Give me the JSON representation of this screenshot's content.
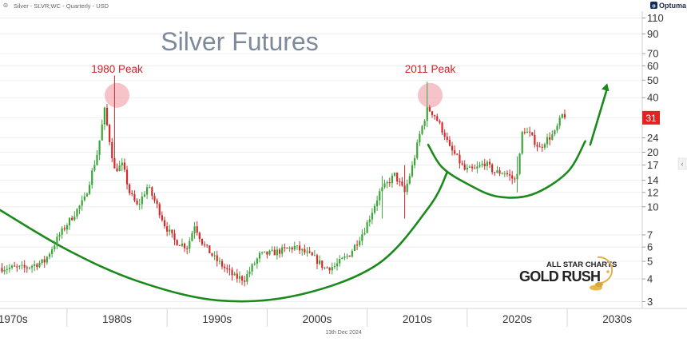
{
  "header": {
    "symbol_line": "Silver - SLVR;WC - Quarterly - USD",
    "brand": "Optuma"
  },
  "footer": {
    "date_text": "13th Dec 2024"
  },
  "watermark": {
    "line1": "ALL STAR CHARTS",
    "line2": "GOLD RUSH"
  },
  "colors": {
    "up": "#3aa63a",
    "down": "#d42a2a",
    "curve": "#1b8a1b",
    "peak_fill": "#f2a3ad",
    "peak_label": "#cc2222",
    "title": "#7d8a99",
    "price_badge": "#e32222",
    "grid": "#e6e6e6"
  },
  "chart_data": {
    "type": "candlestick",
    "title": "Silver Futures",
    "scale": "log",
    "y_ticks": [
      3,
      4,
      5,
      6,
      7,
      10,
      12,
      14,
      17,
      20,
      24,
      31,
      40,
      50,
      60,
      70,
      90,
      110
    ],
    "current_price_label": "31",
    "x_range": [
      1968.3,
      2032.5
    ],
    "x_separators": [
      1975,
      1985,
      1995,
      2005,
      2015,
      2025
    ],
    "x_labels": [
      {
        "label": "1970s",
        "x": 1969.6
      },
      {
        "label": "1980s",
        "x": 1980
      },
      {
        "label": "1990s",
        "x": 1990
      },
      {
        "label": "2000s",
        "x": 2000
      },
      {
        "label": "2010s",
        "x": 2010
      },
      {
        "label": "2020s",
        "x": 2020
      },
      {
        "label": "2030s",
        "x": 2030
      }
    ],
    "annotations": [
      {
        "label": "1980 Peak",
        "x": 1980.0,
        "y": 48
      },
      {
        "label": "2011 Peak",
        "x": 2011.3,
        "y": 48
      }
    ],
    "anchors": [
      [
        1968.5,
        4.6
      ],
      [
        1971,
        4.6
      ],
      [
        1973,
        5.0
      ],
      [
        1974.5,
        7.0
      ],
      [
        1975.5,
        8.4
      ],
      [
        1977,
        11
      ],
      [
        1978.3,
        20
      ],
      [
        1979,
        34
      ],
      [
        1980,
        16
      ],
      [
        1980.8,
        17
      ],
      [
        1981.5,
        12
      ],
      [
        1982.3,
        10
      ],
      [
        1983.3,
        13
      ],
      [
        1984.3,
        10
      ],
      [
        1985,
        8
      ],
      [
        1986,
        6.5
      ],
      [
        1987.3,
        6
      ],
      [
        1988,
        8
      ],
      [
        1988.8,
        6.3
      ],
      [
        1990,
        5.2
      ],
      [
        1991,
        4.6
      ],
      [
        1992,
        4.1
      ],
      [
        1993,
        4
      ],
      [
        1994.5,
        5.4
      ],
      [
        1996,
        5.6
      ],
      [
        1998,
        6
      ],
      [
        1999,
        5.6
      ],
      [
        2000,
        5.2
      ],
      [
        2001,
        4.6
      ],
      [
        2002,
        4.7
      ],
      [
        2003.5,
        5.5
      ],
      [
        2005,
        7.5
      ],
      [
        2006.5,
        12
      ],
      [
        2008,
        15
      ],
      [
        2009,
        12
      ],
      [
        2009.8,
        17
      ],
      [
        2010.5,
        25
      ],
      [
        2011.3,
        35
      ],
      [
        2012,
        32
      ],
      [
        2013,
        25
      ],
      [
        2013.5,
        21
      ],
      [
        2014,
        19.5
      ],
      [
        2015,
        16
      ],
      [
        2016,
        16
      ],
      [
        2017,
        17.5
      ],
      [
        2018,
        15.5
      ],
      [
        2019,
        15.5
      ],
      [
        2020,
        14
      ],
      [
        2020.4,
        17
      ],
      [
        2020.8,
        27
      ],
      [
        2021.5,
        25
      ],
      [
        2022.5,
        21
      ],
      [
        2023,
        23
      ],
      [
        2024,
        25.5
      ],
      [
        2024.75,
        32
      ]
    ],
    "curves": [
      {
        "name": "long-term base",
        "points": [
          [
            1968.3,
            9.6
          ],
          [
            1975,
            5.8
          ],
          [
            1982,
            3.9
          ],
          [
            1990,
            3.05
          ],
          [
            1998,
            3.25
          ],
          [
            2006,
            4.8
          ],
          [
            2011.2,
            10
          ],
          [
            2013,
            15.5
          ]
        ]
      },
      {
        "name": "recent base",
        "points": [
          [
            2011.1,
            22
          ],
          [
            2012.5,
            16.5
          ],
          [
            2015,
            13.4
          ],
          [
            2018,
            11.4
          ],
          [
            2021.5,
            11.7
          ],
          [
            2025,
            15.5
          ],
          [
            2026.8,
            23
          ]
        ]
      }
    ],
    "arrow": {
      "from": [
        2027.3,
        22
      ],
      "to": [
        2029.0,
        48
      ]
    }
  }
}
